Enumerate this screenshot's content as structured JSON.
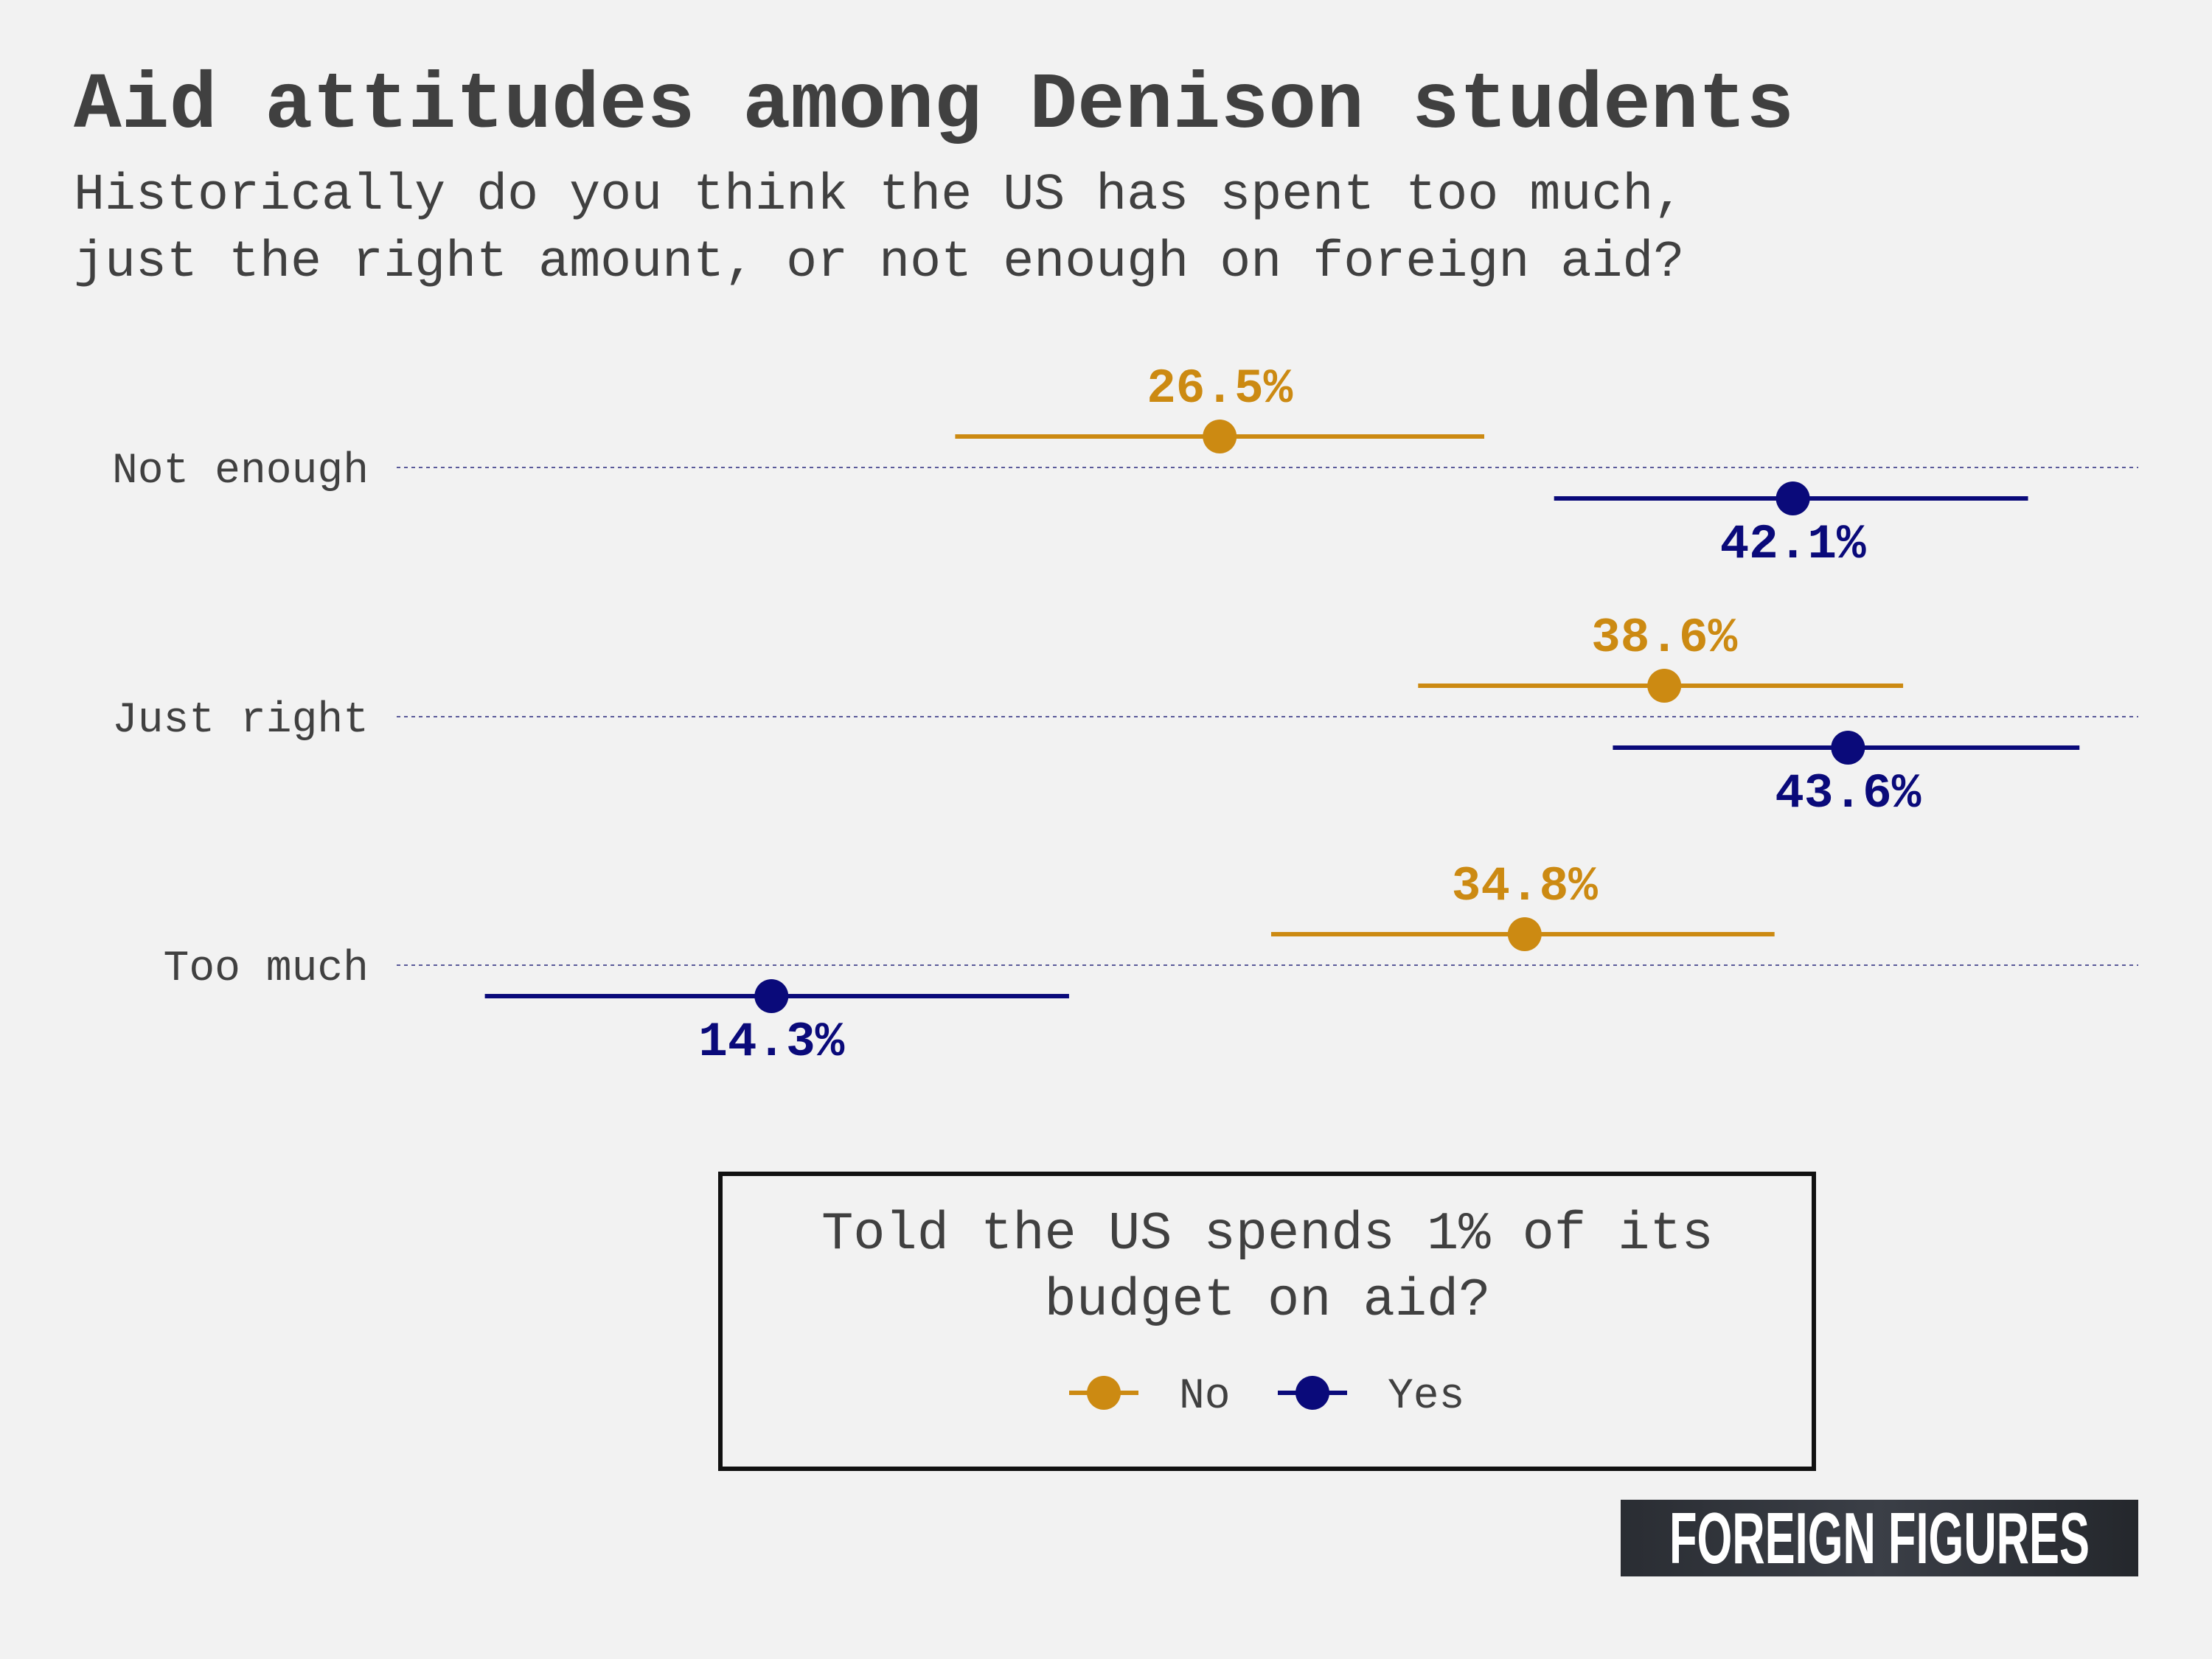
{
  "header": {
    "title": "Aid attitudes among Denison students",
    "subtitle_line1": "Historically do you think the US has spent too much,",
    "subtitle_line2": "just the right amount, or not enough on foreign aid?"
  },
  "chart_data": {
    "type": "scatter",
    "title": "Aid attitudes among Denison students",
    "subtitle": "Historically do you think the US has spent too much, just the right amount, or not enough on foreign aid?",
    "categories": [
      "Not enough",
      "Just right",
      "Too much"
    ],
    "series": [
      {
        "name": "No",
        "color": "#cc8a12",
        "values": [
          26.5,
          38.6,
          34.8
        ],
        "ci_low": [
          19.3,
          31.9,
          27.9
        ],
        "ci_high": [
          33.7,
          45.1,
          41.6
        ],
        "labels": [
          "26.5%",
          "38.6%",
          "34.8%"
        ]
      },
      {
        "name": "Yes",
        "color": "#0a0a7a",
        "values": [
          42.1,
          43.6,
          14.3
        ],
        "ci_low": [
          35.6,
          37.2,
          6.5
        ],
        "ci_high": [
          48.5,
          49.9,
          22.4
        ],
        "labels": [
          "42.1%",
          "43.6%",
          "14.3%"
        ]
      }
    ],
    "xlim": [
      4.1,
      51.5
    ],
    "grid": "horizontal dotted",
    "legend": {
      "title": "Told the US spends 1% of its budget on aid?",
      "title_line1": "Told the US spends 1% of its",
      "title_line2": "budget on aid?",
      "placement": "bottom",
      "items": [
        "No",
        "Yes"
      ]
    }
  },
  "brand": {
    "text": "FOREIGN FIGURES"
  }
}
